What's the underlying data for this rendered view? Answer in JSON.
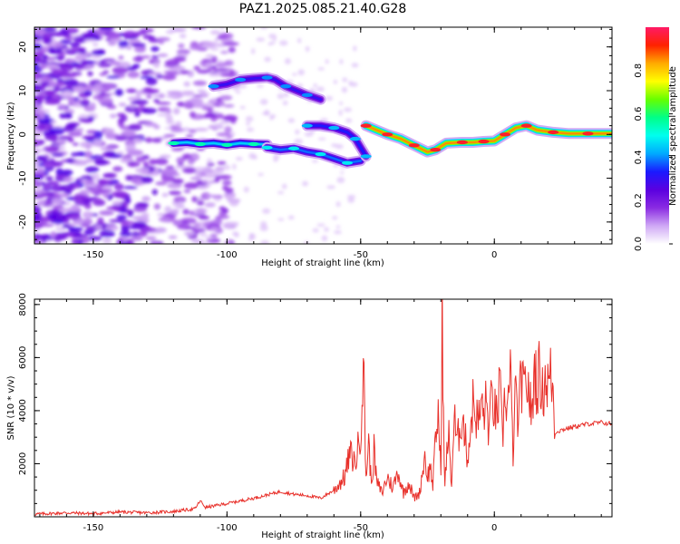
{
  "title": "PAZ1.2025.085.21.40.G28",
  "colors": {
    "snr_line": "#e8302a",
    "colormap": [
      "#ffffff",
      "#cfa8f5",
      "#8a2be2",
      "#5a00e0",
      "#1a1aff",
      "#00aaff",
      "#00ffee",
      "#00ff88",
      "#66ff00",
      "#ffff00",
      "#ffaa00",
      "#ff2200",
      "#ff1a66"
    ]
  },
  "chart_data": [
    {
      "type": "heatmap",
      "xlabel": "Height of straight line (km)",
      "ylabel": "Frequency (Hz)",
      "xlim": [
        -172,
        44
      ],
      "ylim": [
        -25,
        24.5
      ],
      "xticks": [
        -150,
        -100,
        -50,
        0
      ],
      "yticks": [
        -20,
        -10,
        0,
        10,
        20
      ],
      "colorbar": {
        "label": "Normalized spectral amplitude",
        "range": [
          0,
          1
        ],
        "ticks": [
          "0.0",
          "0.2",
          "0.4",
          "0.6",
          "0.8"
        ]
      },
      "traces": [
        {
          "points": [
            [
              -120,
              -2
            ],
            [
              -115,
              -1.8
            ],
            [
              -110,
              -2.2
            ],
            [
              -105,
              -2
            ],
            [
              -100,
              -2.4
            ],
            [
              -95,
              -2
            ],
            [
              -90,
              -2.2
            ],
            [
              -85,
              -2.3
            ]
          ],
          "amp": 0.45
        },
        {
          "points": [
            [
              -85,
              -3
            ],
            [
              -80,
              -3.5
            ],
            [
              -75,
              -3.2
            ],
            [
              -70,
              -4
            ],
            [
              -65,
              -4.5
            ],
            [
              -60,
              -5.5
            ],
            [
              -55,
              -6.5
            ],
            [
              -50,
              -6
            ]
          ],
          "amp": 0.38
        },
        {
          "points": [
            [
              -105,
              11
            ],
            [
              -100,
              11.5
            ],
            [
              -95,
              12.5
            ],
            [
              -90,
              12.8
            ],
            [
              -85,
              13
            ],
            [
              -82,
              12.5
            ],
            [
              -78,
              11
            ],
            [
              -74,
              10
            ],
            [
              -70,
              9
            ],
            [
              -65,
              8
            ]
          ],
          "amp": 0.3
        },
        {
          "points": [
            [
              -70,
              2
            ],
            [
              -65,
              2
            ],
            [
              -60,
              1.5
            ],
            [
              -55,
              0.5
            ],
            [
              -52,
              -1
            ],
            [
              -50,
              -3
            ],
            [
              -48,
              -5
            ]
          ],
          "amp": 0.33
        },
        {
          "points": [
            [
              -48,
              2
            ],
            [
              -44,
              1
            ],
            [
              -40,
              0
            ],
            [
              -35,
              -1
            ],
            [
              -30,
              -2.5
            ],
            [
              -25,
              -4
            ],
            [
              -22,
              -3.5
            ],
            [
              -18,
              -2
            ],
            [
              -12,
              -1.8
            ],
            [
              -8,
              -1.8
            ],
            [
              -4,
              -1.6
            ],
            [
              0,
              -1.5
            ],
            [
              4,
              0
            ],
            [
              8,
              1.5
            ],
            [
              12,
              2
            ],
            [
              16,
              1
            ],
            [
              22,
              0.5
            ],
            [
              28,
              0.2
            ],
            [
              35,
              0.2
            ],
            [
              44,
              0.2
            ]
          ],
          "amp": 0.85
        }
      ]
    },
    {
      "type": "line",
      "xlabel": "Height of straight line (km)",
      "ylabel": "SNR (10 * v/v)",
      "xlim": [
        -172,
        44
      ],
      "ylim": [
        0,
        8200
      ],
      "xticks": [
        -150,
        -100,
        -50,
        0
      ],
      "yticks": [
        2000,
        4000,
        6000,
        8000
      ],
      "series": [
        {
          "x": [
            -172,
            -160,
            -150,
            -140,
            -130,
            -120,
            -112,
            -110,
            -108,
            -100,
            -90,
            -80,
            -75,
            -70,
            -65,
            -60,
            -56,
            -54,
            -52,
            -50,
            -49,
            -48,
            -47,
            -46,
            -45,
            -44,
            -42,
            -40,
            -38,
            -36,
            -34,
            -32,
            -30,
            -28,
            -26,
            -25,
            -24,
            -23,
            -22,
            -21,
            -20,
            -19.5,
            -19,
            -18.5,
            -18,
            -17,
            -16,
            -15,
            -14,
            -12,
            -10,
            -8,
            -6,
            -5,
            -4,
            -3,
            -2,
            -1,
            0,
            1,
            2,
            3,
            4,
            5,
            6,
            7,
            8,
            9,
            10,
            11,
            12,
            13,
            14,
            15,
            16,
            17,
            18,
            19,
            20,
            21,
            22,
            22.5,
            23,
            26,
            30,
            35,
            40,
            44
          ],
          "y": [
            100,
            150,
            120,
            180,
            150,
            200,
            300,
            600,
            350,
            500,
            700,
            950,
            850,
            800,
            700,
            1000,
            1500,
            2400,
            2000,
            3200,
            5900,
            1500,
            2800,
            1200,
            2500,
            1300,
            900,
            1500,
            1100,
            1700,
            900,
            1300,
            700,
            900,
            2300,
            1500,
            1900,
            1200,
            2800,
            4000,
            1600,
            8200,
            3500,
            1000,
            2200,
            3000,
            1200,
            3800,
            2700,
            3900,
            2200,
            4300,
            3500,
            4200,
            3900,
            4300,
            3200,
            4500,
            4100,
            3600,
            5000,
            2800,
            4700,
            4200,
            5300,
            2400,
            4800,
            3300,
            5400,
            4500,
            5200,
            4700,
            3600,
            5700,
            4900,
            5500,
            4600,
            5300,
            5000,
            5300,
            4900,
            3000,
            3200,
            3300,
            3400,
            3500,
            3550,
            3500
          ]
        }
      ]
    }
  ]
}
